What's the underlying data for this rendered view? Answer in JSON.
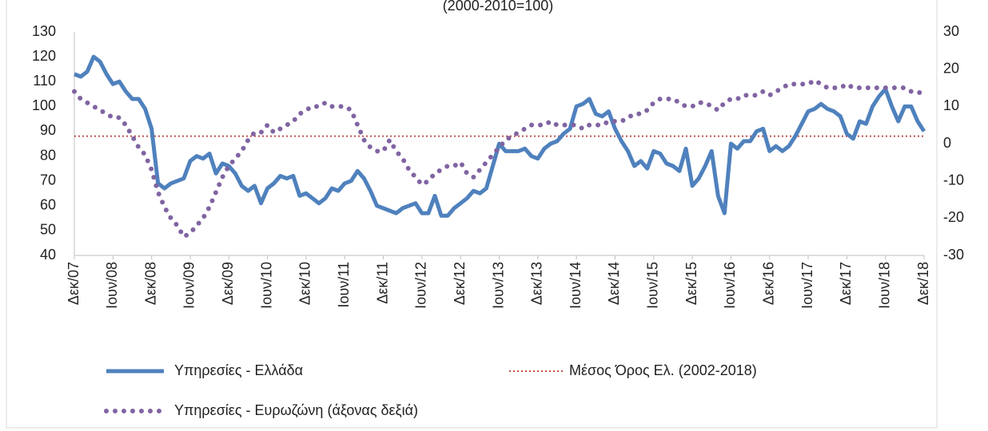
{
  "chart_data": {
    "type": "line",
    "subtitle": "(2000-2010=100)",
    "categories": [
      "Δεκ/07",
      null,
      null,
      null,
      null,
      null,
      "Ιουν/08",
      null,
      null,
      null,
      null,
      null,
      "Δεκ/08",
      null,
      null,
      null,
      null,
      null,
      "Ιουν/09",
      null,
      null,
      null,
      null,
      null,
      "Δεκ/09",
      null,
      null,
      null,
      null,
      null,
      "Ιουν/10",
      null,
      null,
      null,
      null,
      null,
      "Δεκ/10",
      null,
      null,
      null,
      null,
      null,
      "Ιουν/11",
      null,
      null,
      null,
      null,
      null,
      "Δεκ/11",
      null,
      null,
      null,
      null,
      null,
      "Ιουν/12",
      null,
      null,
      null,
      null,
      null,
      "Δεκ/12",
      null,
      null,
      null,
      null,
      null,
      "Ιουν/13",
      null,
      null,
      null,
      null,
      null,
      "Δεκ/13",
      null,
      null,
      null,
      null,
      null,
      "Ιουν/14",
      null,
      null,
      null,
      null,
      null,
      "Δεκ/14",
      null,
      null,
      null,
      null,
      null,
      "Ιουν/15",
      null,
      null,
      null,
      null,
      null,
      "Δεκ/15",
      null,
      null,
      null,
      null,
      null,
      "Ιουν/16",
      null,
      null,
      null,
      null,
      null,
      "Δεκ/16",
      null,
      null,
      null,
      null,
      null,
      "Ιουν/17",
      null,
      null,
      null,
      null,
      null,
      "Δεκ/17",
      null,
      null,
      null,
      null,
      null,
      "Ιουν/18",
      null,
      null,
      null,
      null,
      null,
      "Δεκ/18"
    ],
    "series": [
      {
        "name": "Υπηρεσίες  - Ελλάδα",
        "color": "#4f81bd",
        "style": "solid",
        "values": [
          113,
          112,
          114,
          120,
          118,
          113,
          109,
          110,
          106,
          103,
          103,
          99,
          91,
          69,
          67,
          69,
          70,
          71,
          78,
          80,
          79,
          81,
          73,
          77,
          76,
          73,
          68,
          66,
          68,
          61,
          67,
          69,
          72,
          71,
          72,
          64,
          65,
          63,
          61,
          63,
          67,
          66,
          69,
          70,
          74,
          71,
          66,
          60,
          59,
          58,
          57,
          59,
          60,
          61,
          57,
          57,
          64,
          56,
          56,
          59,
          61,
          63,
          66,
          65,
          67,
          76,
          85,
          82,
          82,
          82,
          83,
          80,
          79,
          83,
          85,
          86,
          89,
          91,
          100,
          101,
          103,
          97,
          96,
          98,
          91,
          86,
          82,
          76,
          78,
          75,
          82,
          81,
          77,
          76,
          74,
          83,
          68,
          71,
          76,
          82,
          64,
          57,
          85,
          83,
          86,
          86,
          90,
          91,
          82,
          84,
          82,
          84,
          88,
          93,
          98,
          99,
          101,
          99,
          98,
          96,
          89,
          87,
          94,
          93,
          100,
          104,
          107,
          100,
          94,
          100,
          100,
          94,
          90
        ]
      },
      {
        "name": "Υπηρεσίες - Ευρωζώνη (άξονας δεξιά)",
        "color": "#8064a2",
        "style": "dotted",
        "axis": "y2",
        "values": [
          14,
          12,
          11,
          10,
          9,
          8,
          7,
          7,
          5,
          2,
          -1,
          -3,
          -7,
          -13,
          -17,
          -20,
          -22,
          -25,
          -24,
          -22,
          -20,
          -17,
          -13,
          -9,
          -6,
          -4,
          -2,
          1,
          3,
          3,
          5,
          3,
          4,
          5,
          6,
          8,
          9,
          10,
          10,
          11,
          10,
          10,
          10,
          9,
          5,
          1,
          -1,
          -2,
          -2,
          1,
          -2,
          -4,
          -7,
          -9,
          -11,
          -10,
          -8,
          -7,
          -6,
          -6,
          -5,
          -8,
          -9,
          -7,
          -5,
          -3,
          -1,
          1,
          2,
          3,
          4,
          5,
          5,
          5,
          6,
          5,
          5,
          5,
          5,
          4,
          5,
          5,
          5,
          6,
          6,
          6,
          7,
          8,
          8,
          9,
          11,
          12,
          12,
          12,
          11,
          10,
          10,
          11,
          11,
          10,
          9,
          11,
          12,
          12,
          13,
          13,
          13,
          14,
          13,
          14,
          15,
          16,
          16,
          16,
          16,
          17,
          16,
          15,
          15,
          15,
          16,
          15,
          15,
          15,
          15,
          15,
          15,
          15,
          15,
          15,
          14,
          14,
          13
        ]
      }
    ],
    "reference_lines": [
      {
        "name": "Μέσος Όρος Ελ. (2002-2018)",
        "value": 88,
        "color": "#c0504d"
      }
    ],
    "ylim": [
      40,
      130
    ],
    "yticks": [
      40,
      50,
      60,
      70,
      80,
      90,
      100,
      110,
      120,
      130
    ],
    "y2lim": [
      -30,
      30
    ],
    "y2ticks": [
      -30,
      -20,
      -10,
      0,
      10,
      20,
      30
    ],
    "grid": false
  }
}
